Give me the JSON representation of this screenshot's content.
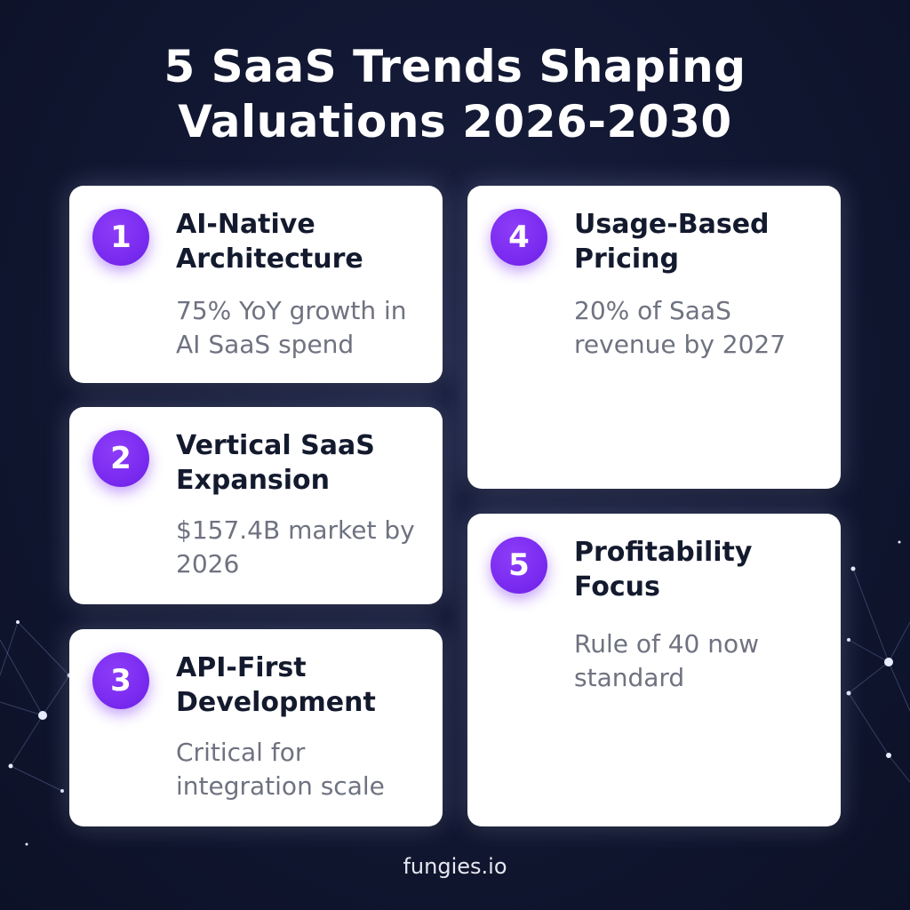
{
  "title": {
    "line1": "5 SaaS Trends Shaping",
    "line2": "Valuations 2026-2030"
  },
  "trends": [
    {
      "number": "1",
      "title_line1": "AI-Native",
      "title_line2": "Architecture",
      "desc_line1": "75% YoY growth in",
      "desc_line2": "AI SaaS spend"
    },
    {
      "number": "2",
      "title_line1": "Vertical SaaS",
      "title_line2": "Expansion",
      "desc_line1": "$157.4B market by",
      "desc_line2": "2026"
    },
    {
      "number": "3",
      "title_line1": "API-First",
      "title_line2": "Development",
      "desc_line1": "Critical for",
      "desc_line2": "integration scale"
    },
    {
      "number": "4",
      "title_line1": "Usage-Based",
      "title_line2": "Pricing",
      "desc_line1": "20% of SaaS",
      "desc_line2": "revenue by 2027"
    },
    {
      "number": "5",
      "title_line1": "Profitability",
      "title_line2": "Focus",
      "desc_line1": "Rule of 40 now",
      "desc_line2": "standard"
    }
  ],
  "footer": "fungies.io",
  "colors": {
    "background": "#121833",
    "card": "#ffffff",
    "accent": "#7a2bf0",
    "title_text": "#141a2e",
    "desc_text": "#6f7280"
  }
}
